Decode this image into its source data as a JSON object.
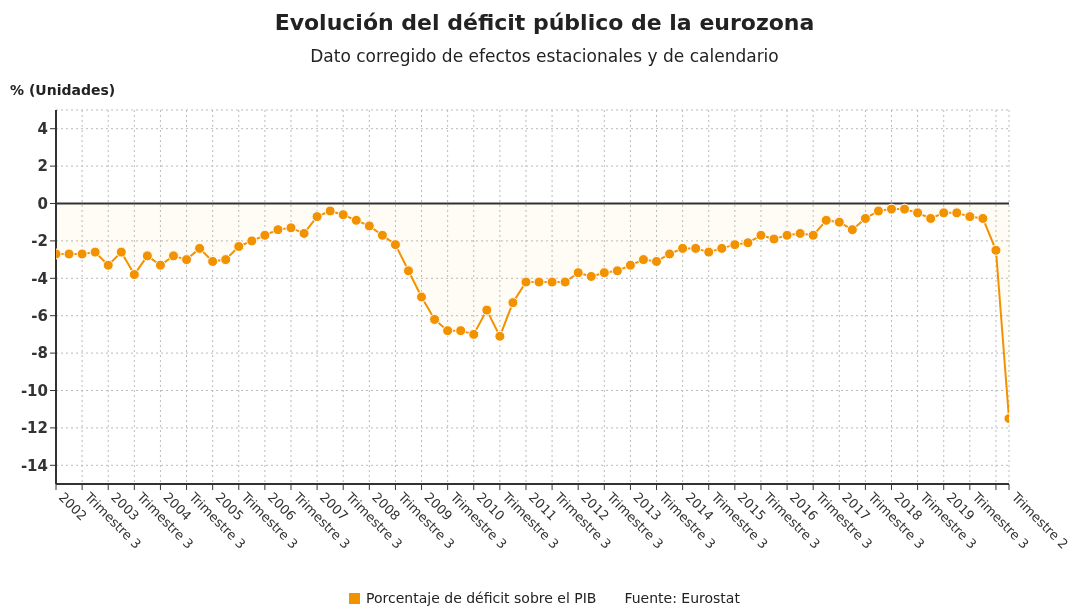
{
  "chart_data": {
    "type": "area",
    "title": "Evolución del déficit público de la eurozona",
    "subtitle": "Dato corregido de efectos estacionales y de calendario",
    "ylabel": "% (Unidades)",
    "annotations": [
      "Fuente: Eurostat"
    ],
    "categories": [
      "2002",
      null,
      "Trimestre 3",
      null,
      "2003",
      null,
      "Trimestre 3",
      null,
      "2004",
      null,
      "Trimestre 3",
      null,
      "2005",
      null,
      "Trimestre 3",
      null,
      "2006",
      null,
      "Trimestre 3",
      null,
      "2007",
      null,
      "Trimestre 3",
      null,
      "2008",
      null,
      "Trimestre 3",
      null,
      "2009",
      null,
      "Trimestre 3",
      null,
      "2010",
      null,
      "Trimestre 3",
      null,
      "2011",
      null,
      "Trimestre 3",
      null,
      "2012",
      null,
      "Trimestre 3",
      null,
      "2013",
      null,
      "Trimestre 3",
      null,
      "2014",
      null,
      "Trimestre 3",
      null,
      "2015",
      null,
      "Trimestre 3",
      null,
      "2016",
      null,
      "Trimestre 3",
      null,
      "2017",
      null,
      "Trimestre 3",
      null,
      "2018",
      null,
      "Trimestre 3",
      null,
      "2019",
      null,
      "Trimestre 3",
      null,
      null,
      "Trimestre 2"
    ],
    "series": [
      {
        "name": "Porcentaje de déficit sobre el PIB",
        "color": "#f39200",
        "values": [
          -2.7,
          -2.7,
          -2.7,
          -2.6,
          -3.3,
          -2.6,
          -3.8,
          -2.8,
          -3.3,
          -2.8,
          -3.0,
          -2.4,
          -3.1,
          -3.0,
          -2.3,
          -2.0,
          -1.7,
          -1.4,
          -1.3,
          -1.6,
          -0.7,
          -0.4,
          -0.6,
          -0.9,
          -1.2,
          -1.7,
          -2.2,
          -3.6,
          -5.0,
          -6.2,
          -6.8,
          -6.8,
          -7.0,
          -5.7,
          -7.1,
          -5.3,
          -4.2,
          -4.2,
          -4.2,
          -4.2,
          -3.7,
          -3.9,
          -3.7,
          -3.6,
          -3.3,
          -3.0,
          -3.1,
          -2.7,
          -2.4,
          -2.4,
          -2.6,
          -2.4,
          -2.2,
          -2.1,
          -1.7,
          -1.9,
          -1.7,
          -1.6,
          -1.7,
          -0.9,
          -1.0,
          -1.4,
          -0.8,
          -0.4,
          -0.3,
          -0.3,
          -0.5,
          -0.8,
          -0.5,
          -0.5,
          -0.7,
          -0.8,
          -2.5,
          -11.5
        ]
      }
    ],
    "ylim": [
      -15,
      5
    ],
    "yticks": [
      -14,
      -12,
      -10,
      -8,
      -6,
      -4,
      -2,
      0,
      2,
      4
    ],
    "grid": true,
    "legend": "bottom",
    "marker": "circle",
    "ref_lines": [
      {
        "axis": "y",
        "value": 0,
        "color": "#333333"
      }
    ]
  }
}
